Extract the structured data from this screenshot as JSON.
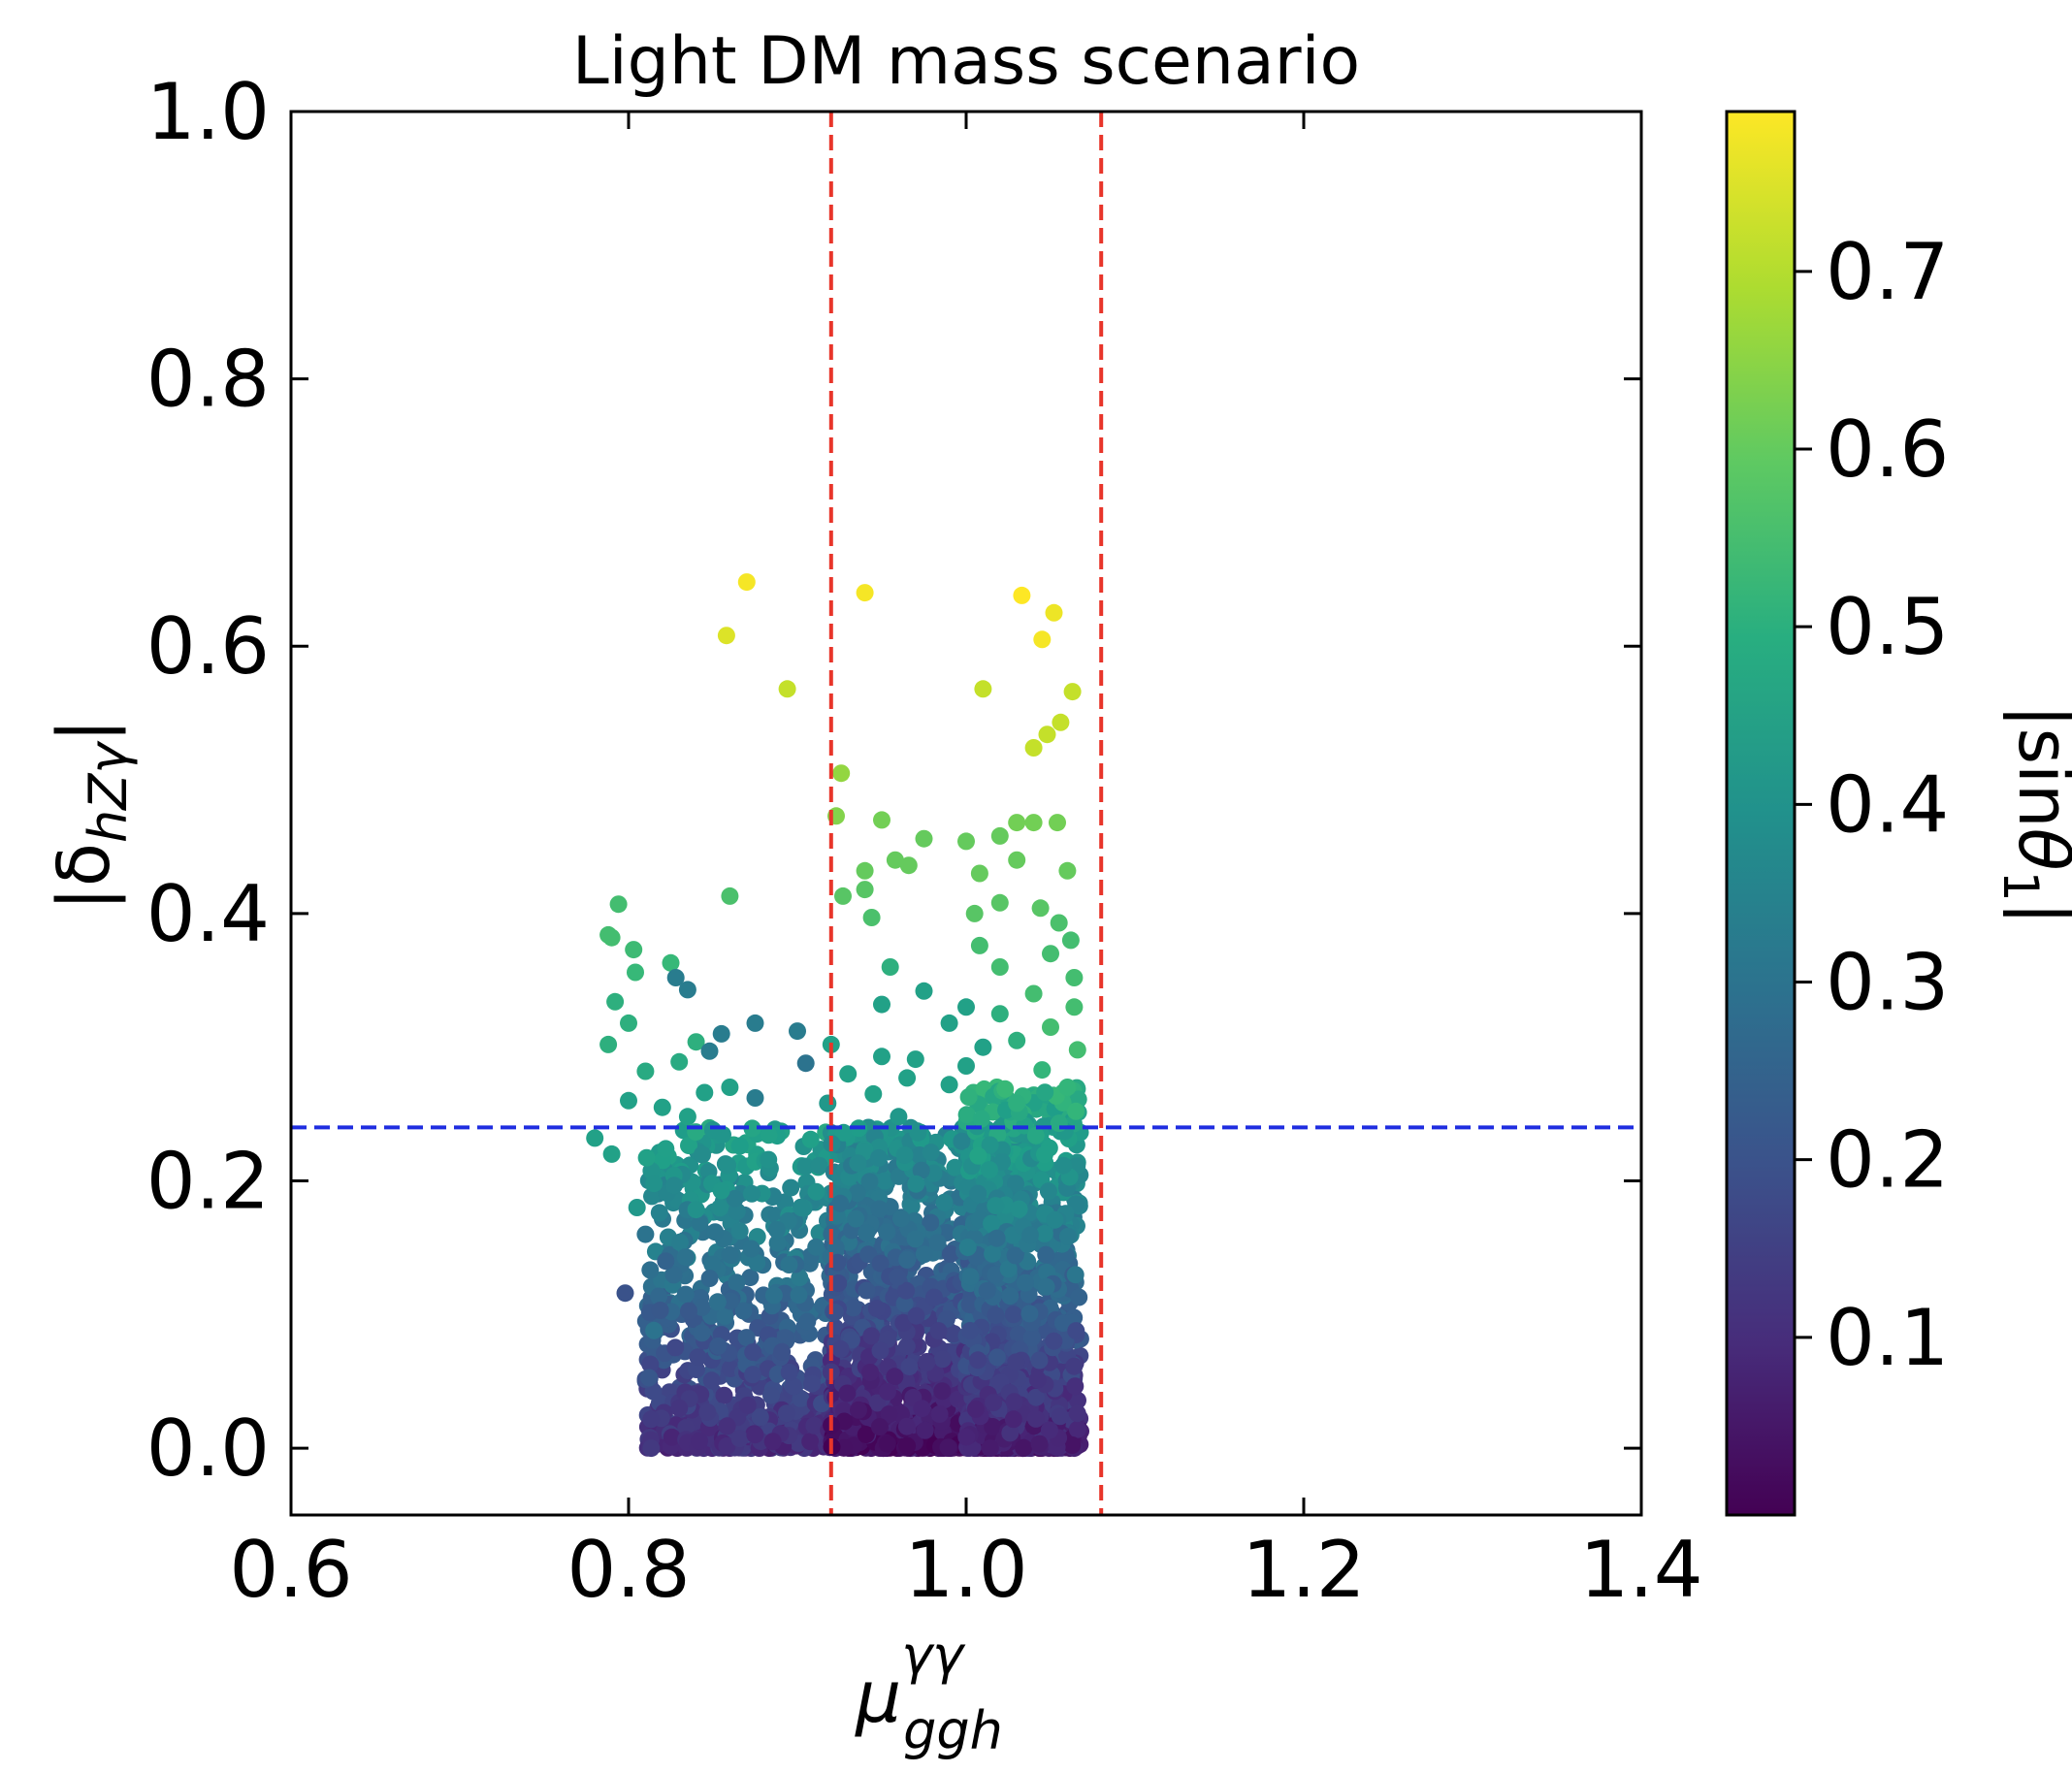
{
  "chart_data": {
    "type": "scatter",
    "title": "Light DM mass scenario",
    "xlabel": {
      "base": "μ",
      "sup": "γγ",
      "sub": "ggh"
    },
    "ylabel": {
      "prefix": "|δ",
      "sub": "hZγ",
      "suffix": "|"
    },
    "xlim": [
      0.6,
      1.4
    ],
    "ylim": [
      -0.05,
      1.0
    ],
    "x_ticks": [
      "0.6",
      "0.8",
      "1.0",
      "1.2",
      "1.4"
    ],
    "x_tick_values": [
      0.6,
      0.8,
      1.0,
      1.2,
      1.4
    ],
    "y_ticks": [
      "0.0",
      "0.2",
      "0.4",
      "0.6",
      "0.8",
      "1.0"
    ],
    "y_tick_values": [
      0.0,
      0.2,
      0.4,
      0.6,
      0.8,
      1.0
    ],
    "colorbar": {
      "label": {
        "prefix": "|sin",
        "theta": "θ",
        "sub": "1",
        "suffix": "|"
      },
      "colormap": "viridis",
      "range": [
        0.0,
        0.79
      ],
      "ticks": [
        "0.1",
        "0.2",
        "0.3",
        "0.4",
        "0.5",
        "0.6",
        "0.7"
      ],
      "tick_values": [
        0.1,
        0.2,
        0.3,
        0.4,
        0.5,
        0.6,
        0.7
      ]
    },
    "reference_lines": [
      {
        "orientation": "vertical",
        "value": 0.92,
        "color": "#e8352a",
        "style": "dashed"
      },
      {
        "orientation": "vertical",
        "value": 1.08,
        "color": "#e8352a",
        "style": "dashed"
      },
      {
        "orientation": "horizontal",
        "value": 0.24,
        "color": "#1f2de0",
        "style": "dashed"
      }
    ],
    "points": [
      [
        0.87,
        0.648,
        0.78
      ],
      [
        0.94,
        0.64,
        0.78
      ],
      [
        1.033,
        0.638,
        0.79
      ],
      [
        1.052,
        0.625,
        0.77
      ],
      [
        0.858,
        0.608,
        0.75
      ],
      [
        1.045,
        0.605,
        0.78
      ],
      [
        0.894,
        0.568,
        0.72
      ],
      [
        1.01,
        0.568,
        0.72
      ],
      [
        1.063,
        0.566,
        0.72
      ],
      [
        1.056,
        0.543,
        0.72
      ],
      [
        1.048,
        0.534,
        0.72
      ],
      [
        1.04,
        0.524,
        0.72
      ],
      [
        0.926,
        0.505,
        0.66
      ],
      [
        0.923,
        0.473,
        0.64
      ],
      [
        0.95,
        0.47,
        0.62
      ],
      [
        1.03,
        0.468,
        0.62
      ],
      [
        1.04,
        0.468,
        0.62
      ],
      [
        1.054,
        0.468,
        0.62
      ],
      [
        0.975,
        0.456,
        0.6
      ],
      [
        1.0,
        0.454,
        0.6
      ],
      [
        1.02,
        0.458,
        0.6
      ],
      [
        1.03,
        0.44,
        0.6
      ],
      [
        0.94,
        0.432,
        0.6
      ],
      [
        0.966,
        0.436,
        0.6
      ],
      [
        0.958,
        0.44,
        0.6
      ],
      [
        1.008,
        0.43,
        0.6
      ],
      [
        1.06,
        0.432,
        0.6
      ],
      [
        0.94,
        0.418,
        0.58
      ],
      [
        0.927,
        0.413,
        0.58
      ],
      [
        0.86,
        0.413,
        0.56
      ],
      [
        0.794,
        0.407,
        0.55
      ],
      [
        1.02,
        0.408,
        0.58
      ],
      [
        1.005,
        0.4,
        0.58
      ],
      [
        1.044,
        0.404,
        0.58
      ],
      [
        0.944,
        0.397,
        0.56
      ],
      [
        1.055,
        0.393,
        0.56
      ],
      [
        0.788,
        0.384,
        0.55
      ],
      [
        0.79,
        0.382,
        0.55
      ],
      [
        1.062,
        0.38,
        0.55
      ],
      [
        1.05,
        0.37,
        0.55
      ],
      [
        0.803,
        0.373,
        0.54
      ],
      [
        1.008,
        0.376,
        0.55
      ],
      [
        0.825,
        0.363,
        0.53
      ],
      [
        0.804,
        0.356,
        0.53
      ],
      [
        0.828,
        0.352,
        0.33
      ],
      [
        1.064,
        0.352,
        0.55
      ],
      [
        0.955,
        0.36,
        0.5
      ],
      [
        1.02,
        0.36,
        0.55
      ],
      [
        0.835,
        0.343,
        0.33
      ],
      [
        0.975,
        0.342,
        0.45
      ],
      [
        1.04,
        0.34,
        0.55
      ],
      [
        0.792,
        0.334,
        0.5
      ],
      [
        0.95,
        0.332,
        0.45
      ],
      [
        1.0,
        0.33,
        0.45
      ],
      [
        1.064,
        0.33,
        0.55
      ],
      [
        1.02,
        0.325,
        0.5
      ],
      [
        0.8,
        0.318,
        0.5
      ],
      [
        0.875,
        0.318,
        0.33
      ],
      [
        0.99,
        0.318,
        0.45
      ],
      [
        1.05,
        0.315,
        0.55
      ],
      [
        0.9,
        0.312,
        0.33
      ],
      [
        0.855,
        0.31,
        0.33
      ],
      [
        0.84,
        0.304,
        0.5
      ],
      [
        1.03,
        0.305,
        0.5
      ],
      [
        0.788,
        0.302,
        0.5
      ],
      [
        0.92,
        0.302,
        0.45
      ],
      [
        1.01,
        0.3,
        0.45
      ],
      [
        1.066,
        0.298,
        0.55
      ],
      [
        0.848,
        0.297,
        0.33
      ],
      [
        0.95,
        0.293,
        0.45
      ],
      [
        0.97,
        0.291,
        0.45
      ],
      [
        0.905,
        0.288,
        0.3
      ],
      [
        0.83,
        0.289,
        0.48
      ],
      [
        1.0,
        0.286,
        0.45
      ],
      [
        1.045,
        0.283,
        0.52
      ],
      [
        0.81,
        0.282,
        0.48
      ],
      [
        0.93,
        0.28,
        0.45
      ],
      [
        0.965,
        0.277,
        0.45
      ],
      [
        0.99,
        0.272,
        0.45
      ],
      [
        0.86,
        0.27,
        0.45
      ],
      [
        1.06,
        0.27,
        0.52
      ],
      [
        0.845,
        0.266,
        0.45
      ],
      [
        0.945,
        0.265,
        0.45
      ],
      [
        0.875,
        0.262,
        0.33
      ],
      [
        0.8,
        0.26,
        0.45
      ],
      [
        0.918,
        0.258,
        0.42
      ],
      [
        1.03,
        0.258,
        0.5
      ],
      [
        0.82,
        0.255,
        0.45
      ],
      [
        0.835,
        0.248,
        0.45
      ],
      [
        0.96,
        0.248,
        0.42
      ],
      [
        1.065,
        0.252,
        0.52
      ],
      [
        0.78,
        0.232,
        0.45
      ],
      [
        0.79,
        0.22,
        0.45
      ],
      [
        0.815,
        0.198,
        0.4
      ],
      [
        0.805,
        0.18,
        0.42
      ],
      [
        0.81,
        0.16,
        0.3
      ],
      [
        0.822,
        0.14,
        0.25
      ],
      [
        0.798,
        0.116,
        0.2
      ],
      [
        0.815,
        0.088,
        0.3
      ]
    ],
    "dense_regions": [
      {
        "x": [
          0.81,
          0.92
        ],
        "y_max": 0.24,
        "n": 700,
        "color_near_axis": 0.1,
        "color_at_top": 0.45
      },
      {
        "x": [
          0.92,
          1.035
        ],
        "y_max": 0.24,
        "n": 1500,
        "color_near_axis": 0.03,
        "color_at_top": 0.4
      },
      {
        "x": [
          1.0,
          1.068
        ],
        "y_max": 0.27,
        "n": 1100,
        "color_near_axis": 0.06,
        "color_at_top": 0.5
      }
    ]
  }
}
